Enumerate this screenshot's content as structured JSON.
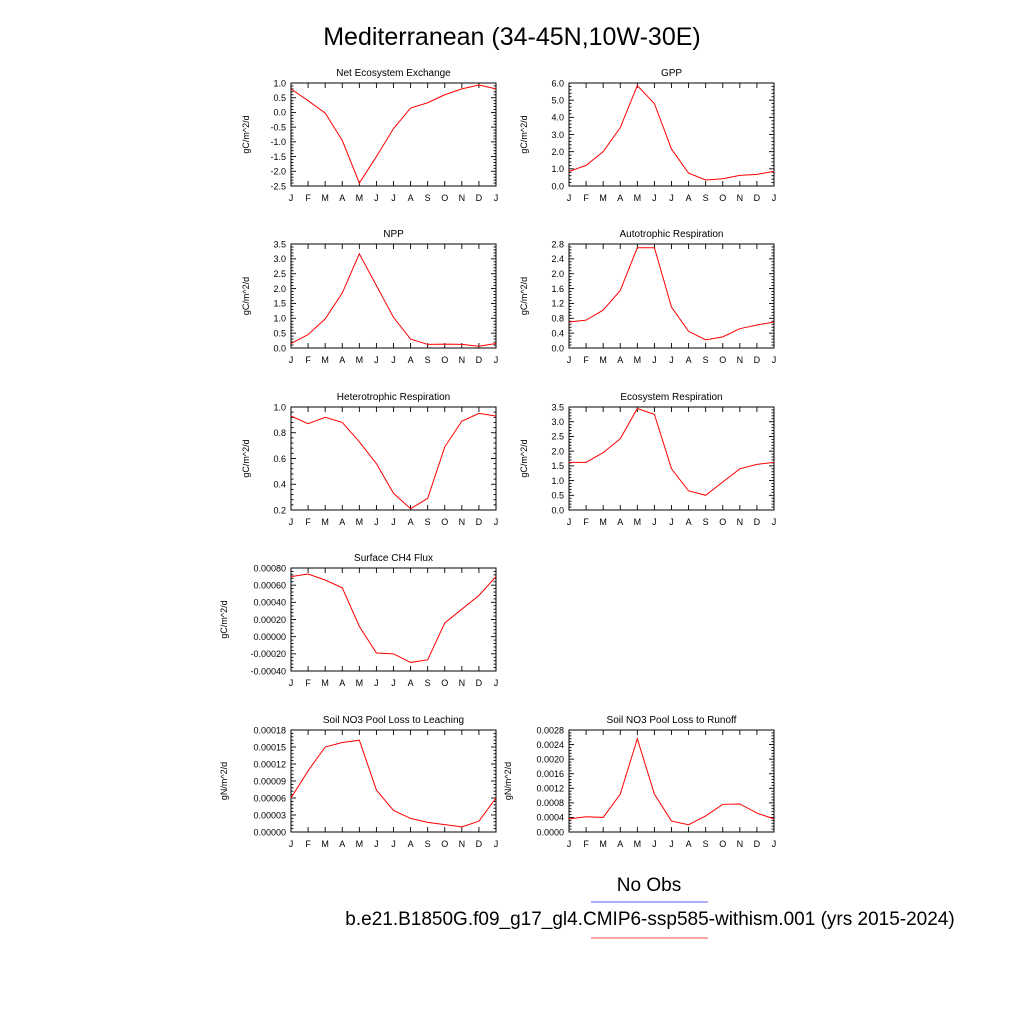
{
  "page_title": "Mediterranean (34-45N,10W-30E)",
  "months": [
    "J",
    "F",
    "M",
    "A",
    "M",
    "J",
    "J",
    "A",
    "S",
    "O",
    "N",
    "D",
    "J"
  ],
  "legend": {
    "obs_label": "No Obs",
    "obs_color": "#7b7bff",
    "model_label": "b.e21.B1850G.f09_g17_gl4.CMIP6-ssp585-withism.001 (yrs 2015-2024)",
    "model_color": "#ff6f6f"
  },
  "series_color": "#ff0000",
  "chart_data": [
    {
      "type": "line",
      "title": "Net Ecosystem Exchange",
      "ylabel": "gC/m^2/d",
      "ylim": [
        -2.5,
        1.0
      ],
      "yticks": [
        "1.0",
        "0.5",
        "0.0",
        "-0.5",
        "-1.0",
        "-1.5",
        "-2.0",
        "-2.5"
      ],
      "x": [
        "J",
        "F",
        "M",
        "A",
        "M",
        "J",
        "J",
        "A",
        "S",
        "O",
        "N",
        "D",
        "J"
      ],
      "values": [
        0.8,
        0.4,
        -0.02,
        -0.95,
        -2.4,
        -1.5,
        -0.55,
        0.15,
        0.33,
        0.6,
        0.8,
        0.93,
        0.8
      ]
    },
    {
      "type": "line",
      "title": "GPP",
      "ylabel": "gC/m^2/d",
      "ylim": [
        0.0,
        6.0
      ],
      "yticks": [
        "6.0",
        "5.0",
        "4.0",
        "3.0",
        "2.0",
        "1.0",
        "0.0"
      ],
      "x": [
        "J",
        "F",
        "M",
        "A",
        "M",
        "J",
        "J",
        "A",
        "S",
        "O",
        "N",
        "D",
        "J"
      ],
      "values": [
        0.85,
        1.2,
        2.0,
        3.4,
        5.85,
        4.8,
        2.15,
        0.75,
        0.35,
        0.42,
        0.62,
        0.68,
        0.85
      ]
    },
    {
      "type": "line",
      "title": "NPP",
      "ylabel": "gC/m^2/d",
      "ylim": [
        0.0,
        3.5
      ],
      "yticks": [
        "3.5",
        "3.0",
        "2.5",
        "2.0",
        "1.5",
        "1.0",
        "0.5",
        "0.0"
      ],
      "x": [
        "J",
        "F",
        "M",
        "A",
        "M",
        "J",
        "J",
        "A",
        "S",
        "O",
        "N",
        "D",
        "J"
      ],
      "values": [
        0.15,
        0.45,
        0.98,
        1.85,
        3.17,
        2.1,
        1.03,
        0.3,
        0.12,
        0.13,
        0.12,
        0.06,
        0.15
      ]
    },
    {
      "type": "line",
      "title": "Autotrophic Respiration",
      "ylabel": "gC/m^2/d",
      "ylim": [
        0.0,
        2.8
      ],
      "yticks": [
        "2.8",
        "2.4",
        "2.0",
        "1.6",
        "1.2",
        "0.8",
        "0.4",
        "0.0"
      ],
      "x": [
        "J",
        "F",
        "M",
        "A",
        "M",
        "J",
        "J",
        "A",
        "S",
        "O",
        "N",
        "D",
        "J"
      ],
      "values": [
        0.7,
        0.75,
        1.02,
        1.55,
        2.7,
        2.7,
        1.1,
        0.45,
        0.22,
        0.3,
        0.52,
        0.62,
        0.7
      ]
    },
    {
      "type": "line",
      "title": "Heterotrophic Respiration",
      "ylabel": "gC/m^2/d",
      "ylim": [
        0.2,
        1.0
      ],
      "yticks": [
        "1.0",
        "0.8",
        "0.6",
        "0.4",
        "0.2"
      ],
      "x": [
        "J",
        "F",
        "M",
        "A",
        "M",
        "J",
        "J",
        "A",
        "S",
        "O",
        "N",
        "D",
        "J"
      ],
      "values": [
        0.93,
        0.87,
        0.92,
        0.88,
        0.73,
        0.56,
        0.33,
        0.21,
        0.29,
        0.69,
        0.89,
        0.95,
        0.93
      ]
    },
    {
      "type": "line",
      "title": "Ecosystem Respiration",
      "ylabel": "gC/m^2/d",
      "ylim": [
        0.0,
        3.5
      ],
      "yticks": [
        "3.5",
        "3.0",
        "2.5",
        "2.0",
        "1.5",
        "1.0",
        "0.5",
        "0.0"
      ],
      "x": [
        "J",
        "F",
        "M",
        "A",
        "M",
        "J",
        "J",
        "A",
        "S",
        "O",
        "N",
        "D",
        "J"
      ],
      "values": [
        1.62,
        1.62,
        1.95,
        2.42,
        3.45,
        3.25,
        1.4,
        0.65,
        0.5,
        0.95,
        1.4,
        1.55,
        1.62
      ]
    },
    {
      "type": "line",
      "title": "Surface CH4 Flux",
      "ylabel": "gC/m^2/d",
      "ylim": [
        -0.0004,
        0.0008
      ],
      "yticks": [
        "0.00080",
        "0.00060",
        "0.00040",
        "0.00020",
        "0.00000",
        "-0.00020",
        "-0.00040"
      ],
      "x": [
        "J",
        "F",
        "M",
        "A",
        "M",
        "J",
        "J",
        "A",
        "S",
        "O",
        "N",
        "D",
        "J"
      ],
      "values": [
        0.0007,
        0.00073,
        0.00066,
        0.00057,
        0.00012,
        -0.00019,
        -0.0002,
        -0.0003,
        -0.00027,
        0.00016,
        0.00032,
        0.00048,
        0.0007
      ]
    },
    {
      "type": "line",
      "title": "Soil NO3 Pool Loss to Leaching",
      "ylabel": "gN/m^2/d",
      "ylim": [
        0.0,
        0.00018
      ],
      "yticks": [
        "0.00018",
        "0.00015",
        "0.00012",
        "0.00009",
        "0.00006",
        "0.00003",
        "0.00000"
      ],
      "x": [
        "J",
        "F",
        "M",
        "A",
        "M",
        "J",
        "J",
        "A",
        "S",
        "O",
        "N",
        "D",
        "J"
      ],
      "values": [
        6e-05,
        0.000108,
        0.00015,
        0.000158,
        0.000162,
        7.4e-05,
        3.8e-05,
        2.4e-05,
        1.7e-05,
        1.3e-05,
        9e-06,
        1.9e-05,
        6e-05
      ]
    },
    {
      "type": "line",
      "title": "Soil NO3 Pool Loss to Runoff",
      "ylabel": "gN/m^2/d",
      "ylim": [
        0.0,
        0.0028
      ],
      "yticks": [
        "0.0028",
        "0.0024",
        "0.0020",
        "0.0016",
        "0.0012",
        "0.0008",
        "0.0004",
        "0.0000"
      ],
      "x": [
        "J",
        "F",
        "M",
        "A",
        "M",
        "J",
        "J",
        "A",
        "S",
        "O",
        "N",
        "D",
        "J"
      ],
      "values": [
        0.00036,
        0.00042,
        0.0004,
        0.00104,
        0.00256,
        0.00104,
        0.0003,
        0.0002,
        0.00044,
        0.00076,
        0.00077,
        0.00052,
        0.00036
      ]
    }
  ]
}
